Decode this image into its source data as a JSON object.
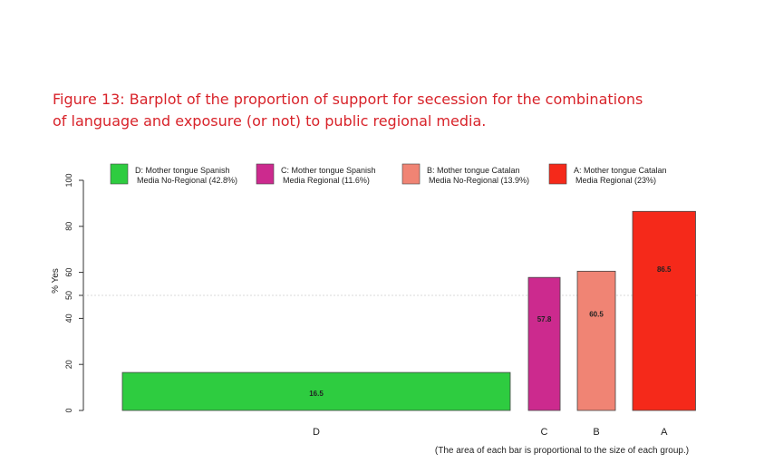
{
  "caption": {
    "line1": "Figure 13: Barplot of the proportion of support for secession for the combinations",
    "line2": "of language and exposure (or not) to public regional media."
  },
  "chart_data": {
    "type": "bar",
    "variable_width": true,
    "ylabel": "% Yes",
    "ylim": [
      0,
      100
    ],
    "yticks": [
      0,
      20,
      40,
      50,
      60,
      80,
      100
    ],
    "reference_line": 50,
    "grid": false,
    "legend_position": "top",
    "note": "(The area of each bar is proportional to the size of each group.)",
    "bars": [
      {
        "category": "D",
        "value": 16.5,
        "value_label": "16.5",
        "share": 42.8,
        "color": "#2ecc40",
        "legend_line1": "D: Mother tongue Spanish",
        "legend_line2": "Media No-Regional (42.8%)"
      },
      {
        "category": "C",
        "value": 57.8,
        "value_label": "57.8",
        "share": 11.6,
        "color": "#cc2a8e",
        "legend_line1": "C: Mother tongue Spanish",
        "legend_line2": "Media Regional (11.6%)"
      },
      {
        "category": "B",
        "value": 60.5,
        "value_label": "60.5",
        "share": 13.9,
        "color": "#f08474",
        "legend_line1": "B: Mother tongue Catalan",
        "legend_line2": "Media No-Regional (13.9%)"
      },
      {
        "category": "A",
        "value": 86.5,
        "value_label": "86.5",
        "share": 23,
        "color": "#f5291a",
        "legend_line1": "A: Mother tongue Catalan",
        "legend_line2": "Media Regional (23%)"
      }
    ]
  }
}
